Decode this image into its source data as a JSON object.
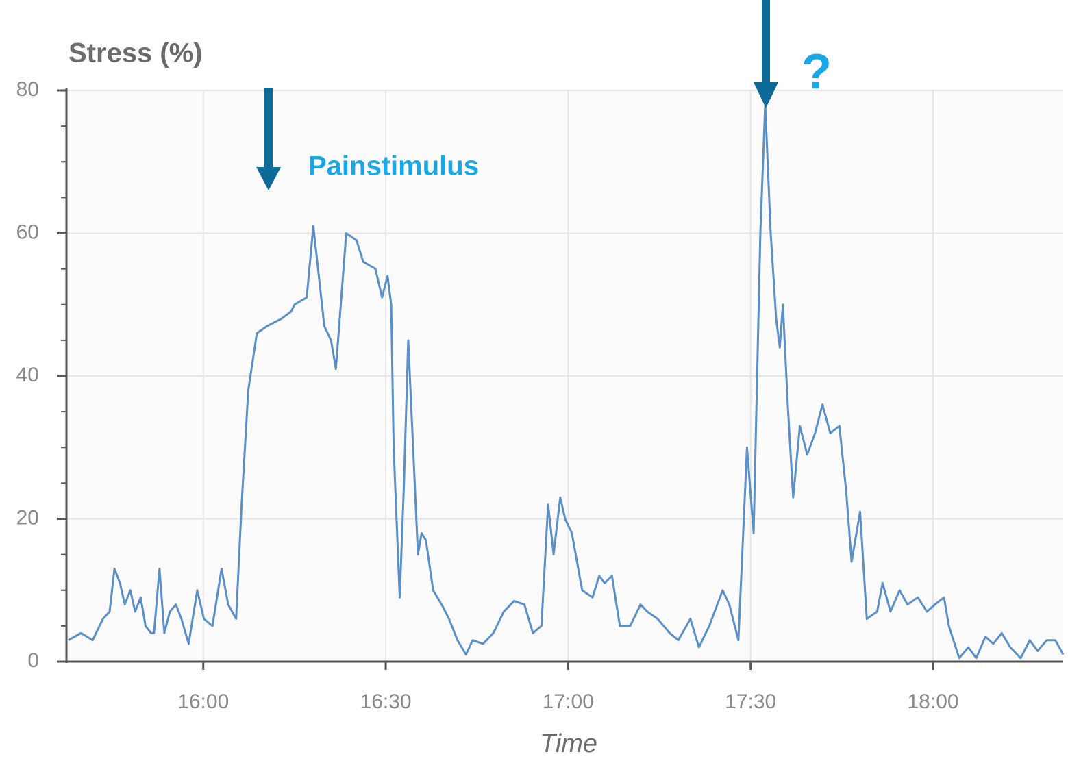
{
  "chart_data": {
    "type": "line",
    "title": "Stress (%)",
    "x_label": "Time",
    "annotations": [
      "Painstimulus",
      "?"
    ],
    "x": [
      937.8,
      939.9,
      941.8,
      943.5,
      944.6,
      945.4,
      946.3,
      947.1,
      948.0,
      948.8,
      949.7,
      950.5,
      951.4,
      951.9,
      952.8,
      953.6,
      954.5,
      955.5,
      956.4,
      957.6,
      959.0,
      960.1,
      961.5,
      963.0,
      964.1,
      965.4,
      966.3,
      967.4,
      968.8,
      970.5,
      972.8,
      974.4,
      975.0,
      977.0,
      978.1,
      979.0,
      979.9,
      981.0,
      981.8,
      983.5,
      985.2,
      986.3,
      988.3,
      989.4,
      990.3,
      990.9,
      991.3,
      992.3,
      993.0,
      993.7,
      994.5,
      995.3,
      995.9,
      996.6,
      997.8,
      999.2,
      1000.4,
      1001.8,
      1003.2,
      1004.3,
      1006.0,
      1007.7,
      1009.4,
      1011.1,
      1012.8,
      1014.2,
      1015.6,
      1016.7,
      1017.6,
      1018.7,
      1019.5,
      1020.6,
      1022.3,
      1024.0,
      1025.1,
      1026.0,
      1027.2,
      1028.5,
      1030.2,
      1031.9,
      1033.0,
      1034.7,
      1036.7,
      1038.1,
      1040.1,
      1041.5,
      1043.2,
      1045.4,
      1046.5,
      1048.0,
      1049.4,
      1050.5,
      1051.6,
      1052.4,
      1053.3,
      1054.2,
      1054.8,
      1055.3,
      1056.1,
      1057.0,
      1058.1,
      1059.3,
      1060.6,
      1061.8,
      1063.1,
      1064.6,
      1065.7,
      1066.6,
      1068.0,
      1069.1,
      1070.8,
      1071.7,
      1073.0,
      1074.5,
      1075.8,
      1077.5,
      1079.0,
      1080.3,
      1081.8,
      1082.6,
      1084.3,
      1085.8,
      1087.1,
      1088.6,
      1089.9,
      1091.3,
      1092.7,
      1094.4,
      1095.9,
      1097.2,
      1098.7,
      1100.1,
      1101.4
    ],
    "series": [
      {
        "name": "Stress",
        "color": "#5b8fc7",
        "values": [
          3,
          4,
          3,
          6,
          7,
          13,
          11,
          8,
          10,
          7,
          9,
          5,
          4,
          4,
          13,
          4,
          7,
          8,
          6,
          2.5,
          10,
          6,
          5,
          13,
          8,
          6,
          22,
          38,
          46,
          47,
          48,
          49,
          50,
          51,
          61,
          54,
          47,
          45,
          41,
          60,
          59,
          56,
          55,
          51,
          54,
          50,
          30,
          9,
          25,
          45,
          30,
          15,
          18,
          17,
          10,
          8,
          6,
          3,
          1,
          3,
          2.5,
          4,
          7,
          8.5,
          8,
          4,
          5,
          22,
          15,
          23,
          20,
          18,
          10,
          9,
          12,
          11,
          12,
          5,
          5,
          8,
          7,
          6,
          4,
          3,
          6,
          2,
          5,
          10,
          8,
          3,
          30,
          18,
          60,
          78,
          60,
          48,
          44,
          50,
          36,
          23,
          33,
          29,
          32,
          36,
          32,
          33,
          24,
          14,
          21,
          6,
          7,
          11,
          7,
          10,
          8,
          9,
          7,
          8,
          9,
          5,
          0.5,
          2,
          0.5,
          3.5,
          2.5,
          4,
          2,
          0.5,
          3,
          1.5,
          3,
          3,
          1
        ]
      }
    ],
    "xlim": [
      937.5,
      1101.4
    ],
    "xticks": [
      {
        "value": 960,
        "label": "16:00"
      },
      {
        "value": 990,
        "label": "16:30"
      },
      {
        "value": 1020,
        "label": "17:00"
      },
      {
        "value": 1050,
        "label": "17:30"
      },
      {
        "value": 1080,
        "label": "18:00"
      }
    ],
    "ylim": [
      0,
      80
    ],
    "yticks": [
      0,
      20,
      40,
      60,
      80
    ],
    "y_minor_ticks": [
      5,
      10,
      15,
      25,
      30,
      35,
      45,
      50,
      55,
      65,
      70,
      75
    ],
    "grid": true
  }
}
